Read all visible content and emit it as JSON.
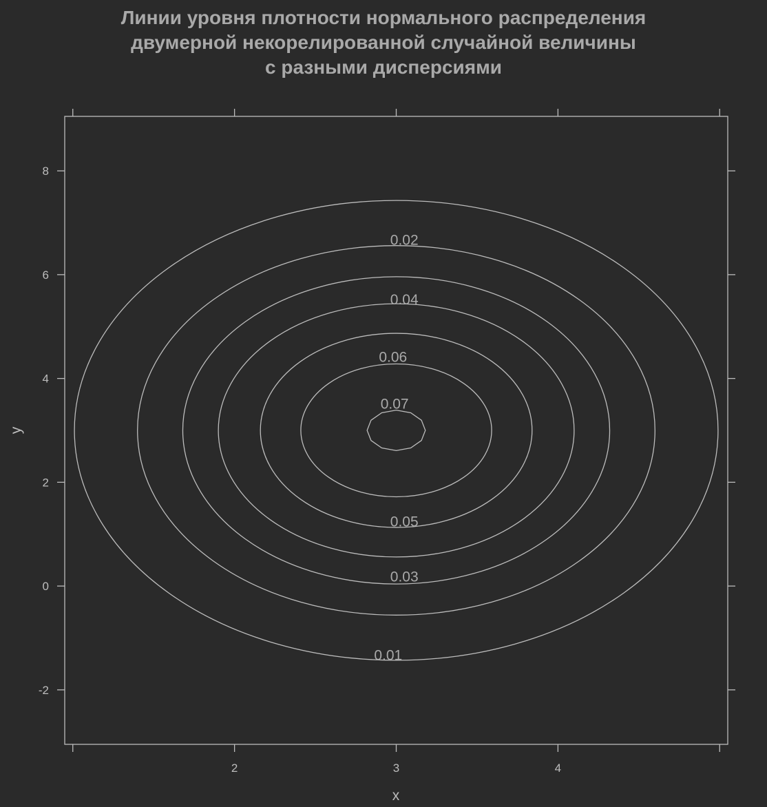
{
  "chart_data": {
    "type": "contour",
    "title_lines": [
      "Линии уровня плотности нормального распределения",
      "двумерной некорелированной случайной величины",
      "с разными дисперсиями"
    ],
    "xlabel": "x",
    "ylabel": "y",
    "xlim": [
      0.95,
      5.05
    ],
    "ylim": [
      -3.05,
      9.05
    ],
    "x_ticks": [
      {
        "value": 1,
        "label": ""
      },
      {
        "value": 2,
        "label": "2"
      },
      {
        "value": 3,
        "label": "3"
      },
      {
        "value": 4,
        "label": "4"
      },
      {
        "value": 5,
        "label": ""
      }
    ],
    "y_ticks": [
      {
        "value": -2,
        "label": "-2"
      },
      {
        "value": 0,
        "label": "0"
      },
      {
        "value": 2,
        "label": "2"
      },
      {
        "value": 4,
        "label": "4"
      },
      {
        "value": 6,
        "label": "6"
      },
      {
        "value": 8,
        "label": "8"
      }
    ],
    "center": {
      "x": 3,
      "y": 3
    },
    "contours": [
      {
        "level": "0.01",
        "x_half_width": 1.99,
        "y_half_height": 4.43,
        "label_x": 2.95,
        "label_y": -1.33
      },
      {
        "level": "0.02",
        "x_half_width": 1.6,
        "y_half_height": 3.56,
        "label_x": 3.05,
        "label_y": 6.67
      },
      {
        "level": "0.03",
        "x_half_width": 1.32,
        "y_half_height": 2.96,
        "label_x": 3.05,
        "label_y": 0.18
      },
      {
        "level": "0.04",
        "x_half_width": 1.1,
        "y_half_height": 2.44,
        "label_x": 3.05,
        "label_y": 5.52
      },
      {
        "level": "0.05",
        "x_half_width": 0.84,
        "y_half_height": 1.87,
        "label_x": 3.05,
        "label_y": 1.24
      },
      {
        "level": "0.06",
        "x_half_width": 0.59,
        "y_half_height": 1.28,
        "label_x": 2.98,
        "label_y": 4.41
      },
      {
        "level": "0.07",
        "x_half_width": 0.18,
        "y_half_height": 0.39,
        "label_x": 2.99,
        "label_y": 3.51
      }
    ],
    "grid": false,
    "legend": "none",
    "colors": {
      "background": "#2a2a2a",
      "lines": "#bdbdbd",
      "title": "#a9a9a9",
      "labels": "#a9a9a9"
    }
  }
}
